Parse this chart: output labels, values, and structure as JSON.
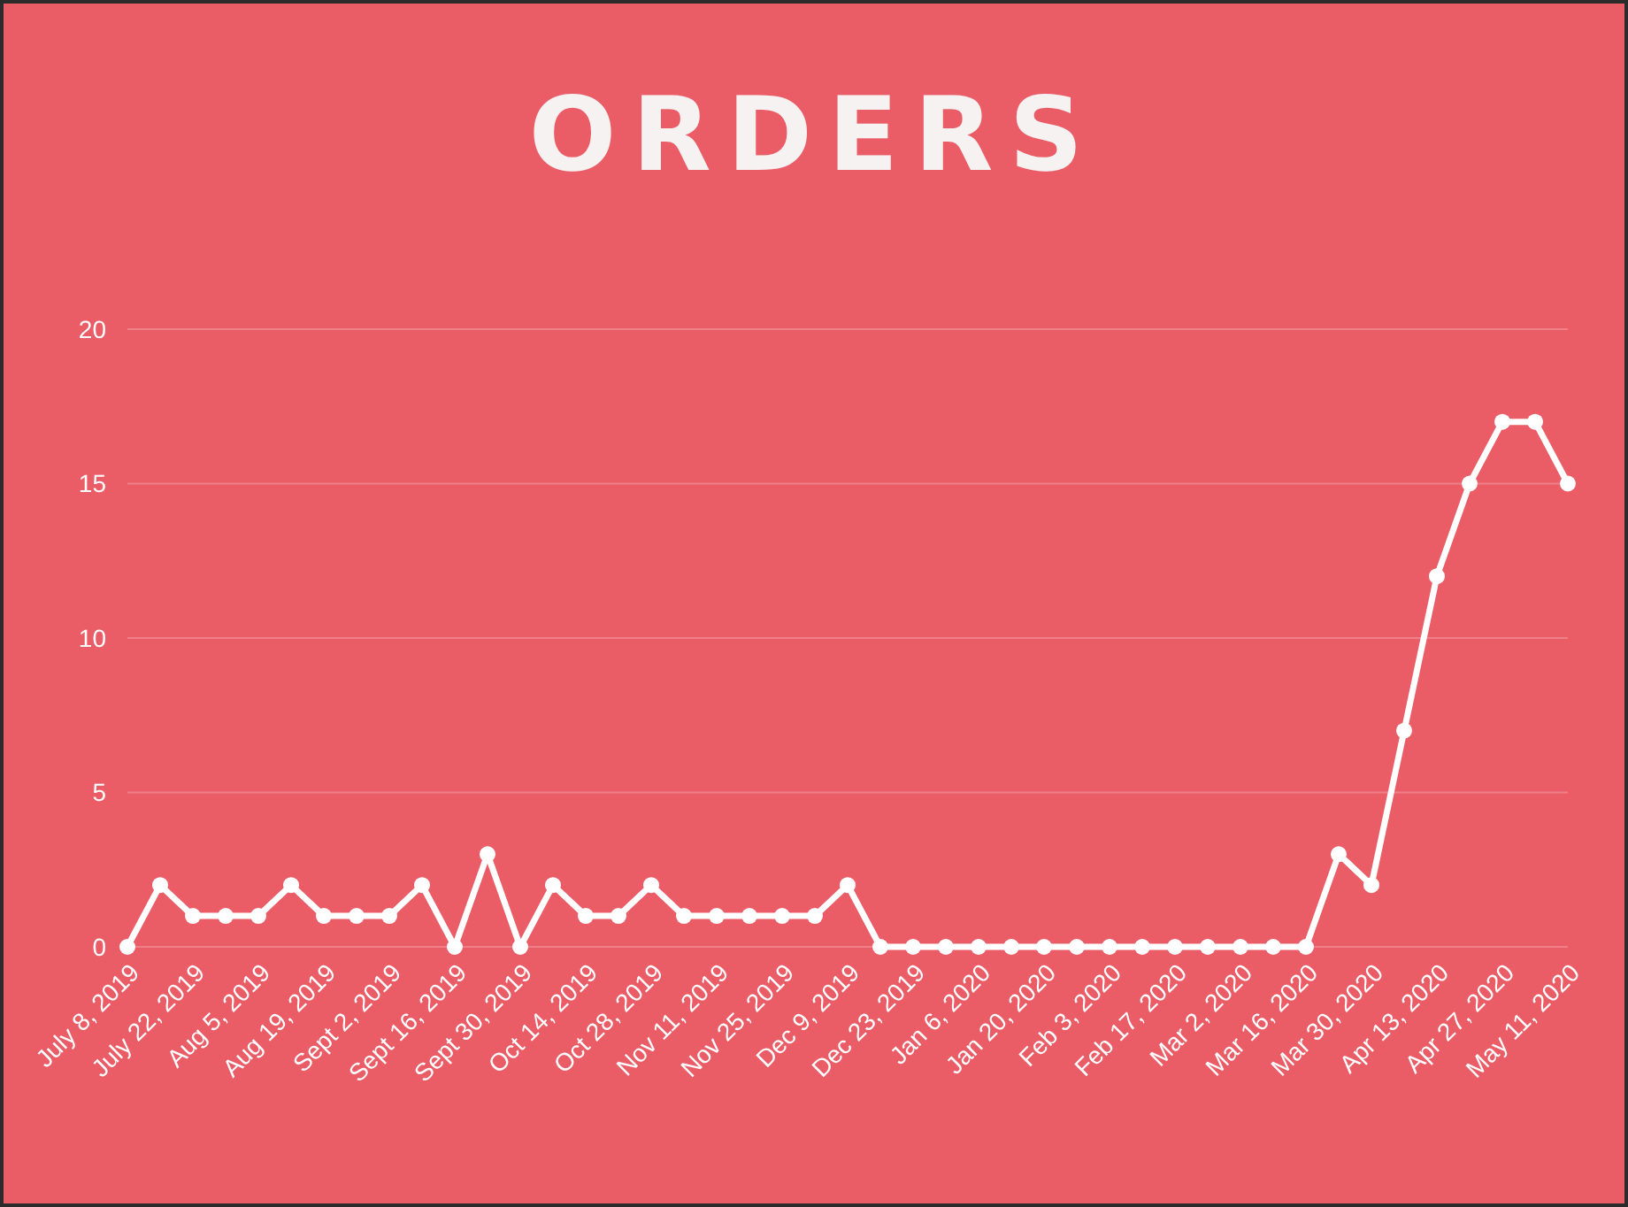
{
  "chart_data": {
    "type": "line",
    "title": "ORDERS",
    "categories": [
      "July 8, 2019",
      null,
      "July 22, 2019",
      null,
      "Aug 5, 2019",
      null,
      "Aug 19, 2019",
      null,
      "Sept 2, 2019",
      null,
      "Sept 16, 2019",
      null,
      "Sept 30, 2019",
      null,
      "Oct 14, 2019",
      null,
      "Oct 28, 2019",
      null,
      "Nov 11, 2019",
      null,
      "Nov 25, 2019",
      null,
      "Dec 9, 2019",
      null,
      "Dec 23, 2019",
      null,
      "Jan 6, 2020",
      null,
      "Jan 20, 2020",
      null,
      "Feb 3, 2020",
      null,
      "Feb 17, 2020",
      null,
      "Mar 2, 2020",
      null,
      "Mar 16, 2020",
      null,
      "Mar 30, 2020",
      null,
      "Apr 13, 2020",
      null,
      "Apr 27, 2020",
      null,
      "May 11, 2020"
    ],
    "series": [
      {
        "color": "#ffffff",
        "values": [
          0,
          2,
          1,
          1,
          1,
          2,
          1,
          1,
          1,
          2,
          0,
          3,
          0,
          2,
          1,
          1,
          2,
          1,
          1,
          1,
          1,
          1,
          2,
          0,
          0,
          0,
          0,
          0,
          0,
          0,
          0,
          0,
          0,
          0,
          0,
          0,
          0,
          3,
          2,
          7,
          12,
          15,
          17,
          17,
          15
        ]
      }
    ],
    "ylim": [
      0,
      20
    ],
    "yticks": [
      0,
      5,
      10,
      15,
      20
    ],
    "grid": "y",
    "marker": "circle",
    "line_style": "solid"
  }
}
